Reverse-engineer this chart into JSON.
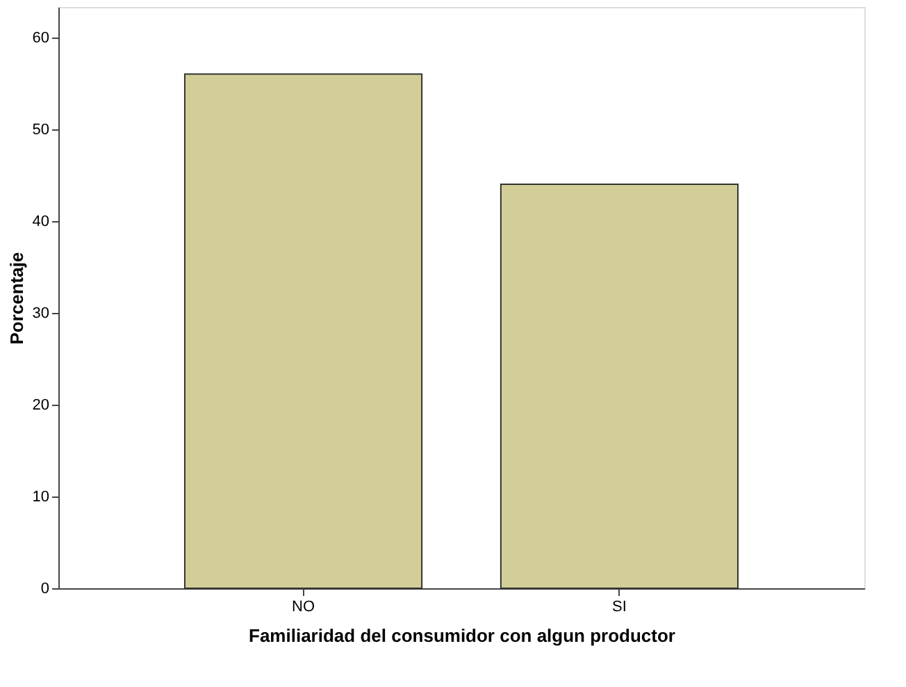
{
  "chart_data": {
    "type": "bar",
    "xlabel": "Familiaridad del consumidor con algun productor",
    "ylabel": "Porcentaje",
    "categories": [
      "NO",
      "SI"
    ],
    "values": [
      56,
      44
    ],
    "color": "#d3ce97",
    "ylim": [
      0,
      63.3
    ],
    "yticks": [
      0,
      10,
      20,
      30,
      40,
      50,
      60
    ],
    "grid": false
  }
}
